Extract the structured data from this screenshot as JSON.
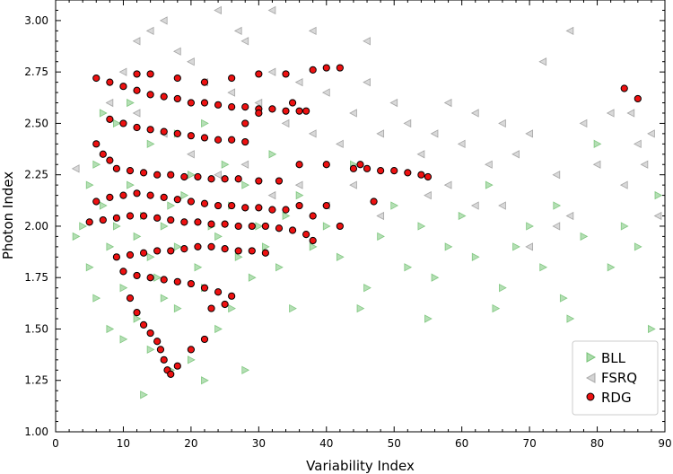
{
  "chart_data": {
    "type": "scatter",
    "title": "",
    "xlabel": "Variability Index",
    "ylabel": "Photon Index",
    "xlim": [
      0,
      90
    ],
    "ylim": [
      1.0,
      3.1
    ],
    "x_ticks": [
      "0",
      "10",
      "20",
      "30",
      "40",
      "50",
      "60",
      "70",
      "80",
      "90"
    ],
    "y_ticks": [
      "1.00",
      "1.25",
      "1.50",
      "1.75",
      "2.00",
      "2.25",
      "2.50",
      "2.75",
      "3.00"
    ],
    "legend_position": "bottom-right",
    "grid": false,
    "series": [
      {
        "name": "BLL",
        "marker": "triangle-right",
        "color": "#5cb85c",
        "points": [
          [
            5,
            1.8
          ],
          [
            6,
            2.3
          ],
          [
            7,
            2.1
          ],
          [
            8,
            1.9
          ],
          [
            9,
            2.0
          ],
          [
            10,
            1.7
          ],
          [
            11,
            2.2
          ],
          [
            12,
            1.95
          ],
          [
            13,
            2.05
          ],
          [
            14,
            1.85
          ],
          [
            15,
            1.75
          ],
          [
            16,
            2.0
          ],
          [
            17,
            2.1
          ],
          [
            18,
            1.9
          ],
          [
            19,
            2.15
          ],
          [
            20,
            2.25
          ],
          [
            21,
            1.8
          ],
          [
            22,
            1.7
          ],
          [
            23,
            2.0
          ],
          [
            24,
            1.95
          ],
          [
            25,
            2.3
          ],
          [
            26,
            2.1
          ],
          [
            27,
            1.85
          ],
          [
            28,
            2.2
          ],
          [
            29,
            1.75
          ],
          [
            30,
            2.0
          ],
          [
            31,
            1.9
          ],
          [
            32,
            2.35
          ],
          [
            33,
            1.8
          ],
          [
            34,
            2.05
          ],
          [
            35,
            1.6
          ],
          [
            36,
            2.15
          ],
          [
            38,
            1.9
          ],
          [
            40,
            2.0
          ],
          [
            42,
            1.85
          ],
          [
            44,
            2.3
          ],
          [
            46,
            1.7
          ],
          [
            48,
            1.95
          ],
          [
            50,
            2.1
          ],
          [
            52,
            1.8
          ],
          [
            54,
            2.0
          ],
          [
            56,
            1.75
          ],
          [
            58,
            1.9
          ],
          [
            60,
            2.05
          ],
          [
            62,
            1.85
          ],
          [
            64,
            2.2
          ],
          [
            66,
            1.7
          ],
          [
            68,
            1.9
          ],
          [
            70,
            2.0
          ],
          [
            72,
            1.8
          ],
          [
            74,
            2.1
          ],
          [
            76,
            1.55
          ],
          [
            78,
            1.95
          ],
          [
            80,
            2.4
          ],
          [
            82,
            1.8
          ],
          [
            84,
            2.0
          ],
          [
            86,
            1.9
          ],
          [
            88,
            1.5
          ],
          [
            89,
            2.15
          ],
          [
            8,
            1.5
          ],
          [
            10,
            1.45
          ],
          [
            12,
            1.55
          ],
          [
            14,
            1.4
          ],
          [
            16,
            1.65
          ],
          [
            18,
            1.6
          ],
          [
            20,
            1.35
          ],
          [
            22,
            1.25
          ],
          [
            24,
            1.5
          ],
          [
            26,
            1.6
          ],
          [
            13,
            1.18
          ],
          [
            17,
            1.3
          ],
          [
            28,
            1.3
          ],
          [
            5,
            2.2
          ],
          [
            7,
            2.55
          ],
          [
            9,
            2.5
          ],
          [
            11,
            2.6
          ],
          [
            14,
            2.4
          ],
          [
            18,
            2.45
          ],
          [
            22,
            2.5
          ],
          [
            6,
            1.65
          ],
          [
            4,
            2.0
          ],
          [
            3,
            1.95
          ],
          [
            45,
            1.6
          ],
          [
            55,
            1.55
          ],
          [
            65,
            1.6
          ],
          [
            75,
            1.65
          ]
        ]
      },
      {
        "name": "FSRQ",
        "marker": "triangle-left",
        "color": "#aaaaaa",
        "points": [
          [
            3,
            2.28
          ],
          [
            8,
            2.6
          ],
          [
            10,
            2.75
          ],
          [
            12,
            2.9
          ],
          [
            14,
            2.95
          ],
          [
            16,
            3.0
          ],
          [
            18,
            2.85
          ],
          [
            20,
            2.8
          ],
          [
            22,
            2.7
          ],
          [
            24,
            3.05
          ],
          [
            26,
            2.65
          ],
          [
            28,
            2.9
          ],
          [
            30,
            2.6
          ],
          [
            32,
            2.75
          ],
          [
            34,
            2.5
          ],
          [
            36,
            2.7
          ],
          [
            38,
            2.45
          ],
          [
            40,
            2.65
          ],
          [
            42,
            2.4
          ],
          [
            44,
            2.55
          ],
          [
            46,
            2.7
          ],
          [
            48,
            2.45
          ],
          [
            50,
            2.6
          ],
          [
            52,
            2.5
          ],
          [
            54,
            2.35
          ],
          [
            56,
            2.45
          ],
          [
            58,
            2.6
          ],
          [
            60,
            2.4
          ],
          [
            62,
            2.55
          ],
          [
            64,
            2.3
          ],
          [
            66,
            2.5
          ],
          [
            68,
            2.35
          ],
          [
            70,
            2.45
          ],
          [
            72,
            2.8
          ],
          [
            74,
            2.25
          ],
          [
            76,
            2.95
          ],
          [
            78,
            2.5
          ],
          [
            80,
            2.3
          ],
          [
            82,
            2.55
          ],
          [
            84,
            2.2
          ],
          [
            86,
            2.4
          ],
          [
            88,
            2.45
          ],
          [
            89,
            2.05
          ],
          [
            76,
            2.05
          ],
          [
            70,
            1.9
          ],
          [
            62,
            2.1
          ],
          [
            55,
            2.15
          ],
          [
            48,
            2.05
          ],
          [
            44,
            2.2
          ],
          [
            40,
            2.1
          ],
          [
            36,
            2.2
          ],
          [
            32,
            2.15
          ],
          [
            28,
            2.3
          ],
          [
            24,
            2.25
          ],
          [
            20,
            2.35
          ],
          [
            16,
            2.45
          ],
          [
            12,
            2.55
          ],
          [
            38,
            2.95
          ],
          [
            32,
            3.05
          ],
          [
            27,
            2.95
          ],
          [
            46,
            2.9
          ],
          [
            58,
            2.2
          ],
          [
            66,
            2.1
          ],
          [
            74,
            2.0
          ],
          [
            85,
            2.55
          ],
          [
            87,
            2.3
          ]
        ]
      },
      {
        "name": "RDG",
        "marker": "circle",
        "color": "#ee1111",
        "points": [
          [
            6,
            2.72
          ],
          [
            8,
            2.7
          ],
          [
            10,
            2.68
          ],
          [
            12,
            2.66
          ],
          [
            14,
            2.64
          ],
          [
            16,
            2.63
          ],
          [
            18,
            2.62
          ],
          [
            20,
            2.6
          ],
          [
            22,
            2.6
          ],
          [
            24,
            2.59
          ],
          [
            26,
            2.58
          ],
          [
            28,
            2.58
          ],
          [
            30,
            2.57
          ],
          [
            32,
            2.57
          ],
          [
            34,
            2.56
          ],
          [
            36,
            2.56
          ],
          [
            8,
            2.52
          ],
          [
            10,
            2.5
          ],
          [
            12,
            2.48
          ],
          [
            14,
            2.47
          ],
          [
            16,
            2.46
          ],
          [
            18,
            2.45
          ],
          [
            20,
            2.44
          ],
          [
            22,
            2.43
          ],
          [
            24,
            2.42
          ],
          [
            26,
            2.42
          ],
          [
            28,
            2.41
          ],
          [
            9,
            2.28
          ],
          [
            11,
            2.27
          ],
          [
            13,
            2.26
          ],
          [
            15,
            2.25
          ],
          [
            17,
            2.25
          ],
          [
            19,
            2.24
          ],
          [
            21,
            2.24
          ],
          [
            23,
            2.23
          ],
          [
            25,
            2.23
          ],
          [
            27,
            2.23
          ],
          [
            30,
            2.22
          ],
          [
            33,
            2.22
          ],
          [
            36,
            2.3
          ],
          [
            40,
            2.3
          ],
          [
            44,
            2.28
          ],
          [
            46,
            2.28
          ],
          [
            48,
            2.27
          ],
          [
            50,
            2.27
          ],
          [
            52,
            2.26
          ],
          [
            54,
            2.25
          ],
          [
            55,
            2.24
          ],
          [
            6,
            2.12
          ],
          [
            8,
            2.14
          ],
          [
            10,
            2.15
          ],
          [
            12,
            2.16
          ],
          [
            14,
            2.15
          ],
          [
            16,
            2.14
          ],
          [
            18,
            2.13
          ],
          [
            20,
            2.12
          ],
          [
            22,
            2.11
          ],
          [
            24,
            2.1
          ],
          [
            26,
            2.1
          ],
          [
            28,
            2.09
          ],
          [
            30,
            2.09
          ],
          [
            32,
            2.08
          ],
          [
            34,
            2.08
          ],
          [
            36,
            2.1
          ],
          [
            38,
            2.05
          ],
          [
            5,
            2.02
          ],
          [
            7,
            2.03
          ],
          [
            9,
            2.04
          ],
          [
            11,
            2.05
          ],
          [
            13,
            2.05
          ],
          [
            15,
            2.04
          ],
          [
            17,
            2.03
          ],
          [
            19,
            2.02
          ],
          [
            21,
            2.02
          ],
          [
            23,
            2.01
          ],
          [
            25,
            2.01
          ],
          [
            27,
            2.0
          ],
          [
            29,
            2.0
          ],
          [
            31,
            2.0
          ],
          [
            33,
            1.99
          ],
          [
            35,
            1.98
          ],
          [
            37,
            1.96
          ],
          [
            38,
            1.93
          ],
          [
            9,
            1.85
          ],
          [
            11,
            1.86
          ],
          [
            13,
            1.87
          ],
          [
            15,
            1.88
          ],
          [
            17,
            1.88
          ],
          [
            19,
            1.89
          ],
          [
            21,
            1.9
          ],
          [
            23,
            1.9
          ],
          [
            25,
            1.89
          ],
          [
            27,
            1.88
          ],
          [
            29,
            1.88
          ],
          [
            31,
            1.87
          ],
          [
            10,
            1.78
          ],
          [
            12,
            1.76
          ],
          [
            14,
            1.75
          ],
          [
            16,
            1.74
          ],
          [
            18,
            1.73
          ],
          [
            20,
            1.72
          ],
          [
            22,
            1.7
          ],
          [
            24,
            1.68
          ],
          [
            26,
            1.66
          ],
          [
            11,
            1.65
          ],
          [
            12,
            1.58
          ],
          [
            13,
            1.52
          ],
          [
            14,
            1.48
          ],
          [
            15,
            1.44
          ],
          [
            15.5,
            1.4
          ],
          [
            16,
            1.35
          ],
          [
            16.5,
            1.3
          ],
          [
            17,
            1.28
          ],
          [
            18,
            1.32
          ],
          [
            20,
            1.4
          ],
          [
            22,
            1.45
          ],
          [
            23,
            1.6
          ],
          [
            25,
            1.62
          ],
          [
            6,
            2.4
          ],
          [
            7,
            2.35
          ],
          [
            8,
            2.32
          ],
          [
            12,
            2.74
          ],
          [
            14,
            2.74
          ],
          [
            18,
            2.72
          ],
          [
            22,
            2.7
          ],
          [
            26,
            2.72
          ],
          [
            30,
            2.74
          ],
          [
            34,
            2.74
          ],
          [
            38,
            2.76
          ],
          [
            40,
            2.77
          ],
          [
            42,
            2.77
          ],
          [
            35,
            2.6
          ],
          [
            37,
            2.56
          ],
          [
            30,
            2.55
          ],
          [
            28,
            2.5
          ],
          [
            40,
            2.1
          ],
          [
            42,
            2.0
          ],
          [
            84,
            2.67
          ],
          [
            86,
            2.62
          ],
          [
            45,
            2.3
          ],
          [
            47,
            2.12
          ]
        ]
      }
    ]
  }
}
